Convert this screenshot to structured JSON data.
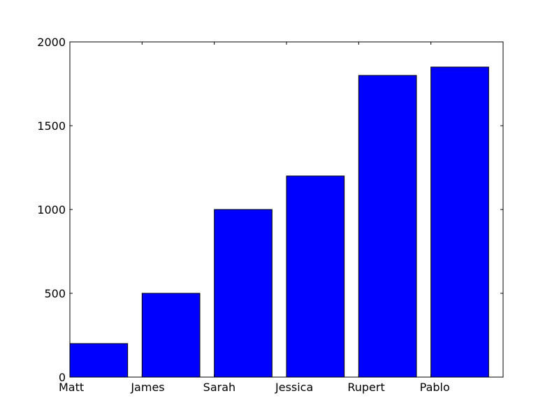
{
  "chart_data": {
    "type": "bar",
    "categories": [
      "Matt",
      "James",
      "Sarah",
      "Jessica",
      "Rupert",
      "Pablo"
    ],
    "values": [
      200,
      500,
      1000,
      1200,
      1800,
      1850
    ],
    "title": "",
    "xlabel": "",
    "ylabel": "",
    "ylim": [
      0,
      2000
    ],
    "xlim": [
      0,
      6
    ],
    "yticks": [
      0,
      500,
      1000,
      1500,
      2000
    ],
    "ytick_labels": [
      "0",
      "500",
      "1000",
      "1500",
      "2000"
    ],
    "tick_label_alignment": "left",
    "bar_color": "#0000ff",
    "edge_color": "#000000",
    "bar_width": 0.8,
    "grid": false,
    "legend": "none"
  }
}
